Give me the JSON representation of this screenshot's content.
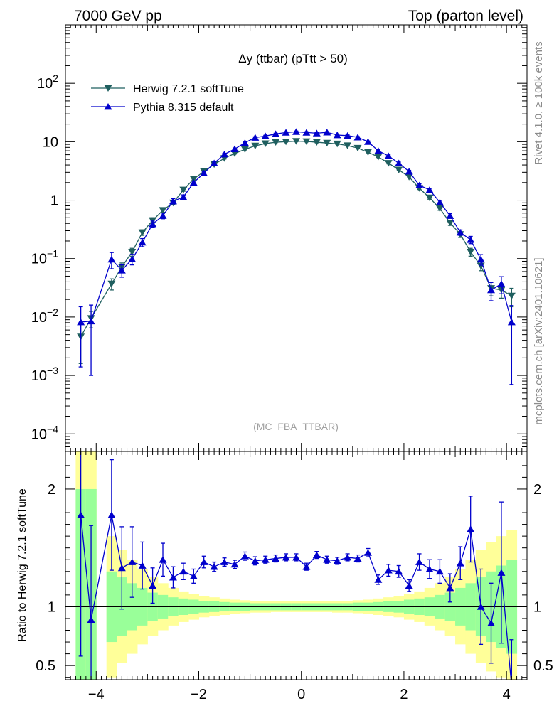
{
  "header": {
    "left": "7000 GeV pp",
    "right": "Top (parton level)"
  },
  "side": {
    "rivet": "Rivet 4.1.0, ≥ 100k events",
    "mcplots": "mcplots.cern.ch [arXiv:2401.10621]"
  },
  "chart_data": {
    "type": "line",
    "title": "Δy (ttbar) (pTtt > 50)",
    "watermark": "(MC_FBA_TTBAR)",
    "xlabel": "",
    "ylabel_main": "",
    "ylabel_ratio": "Ratio to Herwig 7.2.1 softTune",
    "xlim": [
      -4.6,
      4.4
    ],
    "ylim_main": [
      5e-05,
      1000
    ],
    "ylim_ratio": [
      0.38,
      2.32
    ],
    "x_ticks": [
      -4,
      -2,
      0,
      2,
      4
    ],
    "x_tick_labels": [
      "−4",
      "−2",
      "0",
      "2",
      "4"
    ],
    "y_ticks_main": [
      {
        "value": 0.0001,
        "base": "10",
        "exp": "−4"
      },
      {
        "value": 0.001,
        "base": "10",
        "exp": "−3"
      },
      {
        "value": 0.01,
        "base": "10",
        "exp": "−2"
      },
      {
        "value": 0.1,
        "base": "10",
        "exp": "−1"
      },
      {
        "value": 1,
        "base": "1",
        "exp": ""
      },
      {
        "value": 10,
        "base": "10",
        "exp": ""
      },
      {
        "value": 100,
        "base": "10",
        "exp": "2"
      }
    ],
    "y_ticks_ratio": [
      {
        "value": 0.5,
        "label": "0.5"
      },
      {
        "value": 1,
        "label": "1"
      },
      {
        "value": 2,
        "label": "2"
      }
    ],
    "x": [
      -4.3,
      -4.1,
      -3.7,
      -3.5,
      -3.3,
      -3.1,
      -2.9,
      -2.7,
      -2.5,
      -2.3,
      -2.1,
      -1.9,
      -1.7,
      -1.5,
      -1.3,
      -1.1,
      -0.9,
      -0.7,
      -0.5,
      -0.3,
      -0.1,
      0.1,
      0.3,
      0.5,
      0.7,
      0.9,
      1.1,
      1.3,
      1.5,
      1.7,
      1.9,
      2.1,
      2.3,
      2.5,
      2.7,
      2.9,
      3.1,
      3.3,
      3.5,
      3.7,
      3.9,
      4.1
    ],
    "series": [
      {
        "name": "Herwig 7.2.1 softTune",
        "color": "#1f5f5f",
        "marker": "triangle-down",
        "values": [
          0.0046,
          0.0095,
          0.037,
          0.072,
          0.13,
          0.28,
          0.45,
          0.67,
          0.9,
          1.5,
          2.3,
          3.1,
          4.1,
          5.2,
          6.3,
          7.4,
          8.5,
          9.3,
          9.8,
          10.0,
          10.2,
          10.1,
          9.8,
          9.5,
          9.2,
          8.6,
          7.8,
          6.6,
          5.5,
          4.3,
          3.3,
          2.5,
          1.6,
          1.1,
          0.72,
          0.41,
          0.26,
          0.13,
          0.075,
          0.031,
          0.029,
          0.023
        ],
        "errors": [
          0.003,
          0.003,
          0.008,
          0.012,
          0.02,
          0.03,
          0.05,
          0.05,
          0.06,
          0.08,
          0.1,
          0.1,
          0.12,
          0.14,
          0.15,
          0.16,
          0.17,
          0.18,
          0.18,
          0.18,
          0.18,
          0.18,
          0.18,
          0.18,
          0.18,
          0.17,
          0.16,
          0.15,
          0.14,
          0.12,
          0.1,
          0.1,
          0.08,
          0.06,
          0.05,
          0.04,
          0.03,
          0.02,
          0.013,
          0.008,
          0.008,
          0.008
        ]
      },
      {
        "name": "Pythia 8.315 default",
        "color": "#0000cc",
        "marker": "triangle-up",
        "values": [
          0.0082,
          0.0085,
          0.097,
          0.063,
          0.098,
          0.19,
          0.39,
          0.54,
          0.96,
          1.13,
          2.0,
          2.9,
          4.3,
          6.1,
          7.5,
          9.6,
          11.8,
          12.5,
          13.6,
          14.4,
          14.8,
          14.4,
          14.0,
          14.5,
          13.0,
          12.7,
          11.9,
          10.0,
          7.0,
          5.7,
          4.3,
          3.1,
          1.8,
          1.5,
          0.92,
          0.54,
          0.28,
          0.21,
          0.097,
          0.029,
          0.037,
          0.0082
        ],
        "errors": [
          0.0068,
          0.0075,
          0.03,
          0.015,
          0.02,
          0.03,
          0.05,
          0.06,
          0.1,
          0.1,
          0.12,
          0.15,
          0.2,
          0.25,
          0.28,
          0.3,
          0.35,
          0.35,
          0.38,
          0.38,
          0.4,
          0.38,
          0.38,
          0.38,
          0.35,
          0.35,
          0.33,
          0.3,
          0.25,
          0.22,
          0.18,
          0.14,
          0.1,
          0.09,
          0.07,
          0.05,
          0.03,
          0.03,
          0.02,
          0.01,
          0.012,
          0.0075
        ]
      }
    ],
    "ratio": {
      "reference": "Herwig 7.2.1 softTune",
      "values": [
        1.78,
        0.89,
        1.78,
        1.33,
        1.38,
        1.35,
        1.18,
        1.4,
        1.25,
        1.3,
        1.26,
        1.38,
        1.34,
        1.38,
        1.36,
        1.43,
        1.39,
        1.4,
        1.41,
        1.42,
        1.42,
        1.34,
        1.44,
        1.4,
        1.39,
        1.42,
        1.41,
        1.46,
        1.23,
        1.31,
        1.3,
        1.18,
        1.38,
        1.32,
        1.3,
        1.16,
        1.37,
        1.66,
        1.0,
        0.86,
        1.29,
        0.32
      ],
      "errors": [
        1.2,
        0.8,
        0.47,
        0.35,
        0.3,
        0.2,
        0.15,
        0.14,
        0.09,
        0.07,
        0.06,
        0.05,
        0.04,
        0.035,
        0.035,
        0.035,
        0.035,
        0.03,
        0.03,
        0.03,
        0.03,
        0.03,
        0.03,
        0.03,
        0.03,
        0.03,
        0.03,
        0.035,
        0.04,
        0.05,
        0.05,
        0.05,
        0.07,
        0.08,
        0.1,
        0.12,
        0.14,
        0.28,
        0.32,
        0.34,
        0.6,
        0.4
      ],
      "band_green_half_width": [
        1.0,
        1.0,
        0.3,
        0.25,
        0.2,
        0.16,
        0.12,
        0.1,
        0.08,
        0.07,
        0.06,
        0.05,
        0.045,
        0.04,
        0.035,
        0.035,
        0.03,
        0.03,
        0.03,
        0.03,
        0.03,
        0.03,
        0.03,
        0.03,
        0.03,
        0.03,
        0.035,
        0.035,
        0.04,
        0.045,
        0.05,
        0.06,
        0.07,
        0.08,
        0.1,
        0.12,
        0.16,
        0.2,
        0.25,
        0.3,
        0.35,
        0.4
      ],
      "band_yellow_half_width": [
        1.5,
        1.5,
        0.6,
        0.48,
        0.4,
        0.32,
        0.25,
        0.2,
        0.16,
        0.13,
        0.11,
        0.09,
        0.08,
        0.07,
        0.06,
        0.055,
        0.05,
        0.05,
        0.045,
        0.045,
        0.045,
        0.045,
        0.045,
        0.045,
        0.05,
        0.05,
        0.055,
        0.06,
        0.07,
        0.08,
        0.09,
        0.11,
        0.13,
        0.16,
        0.2,
        0.25,
        0.32,
        0.4,
        0.48,
        0.55,
        0.6,
        0.65
      ]
    }
  }
}
